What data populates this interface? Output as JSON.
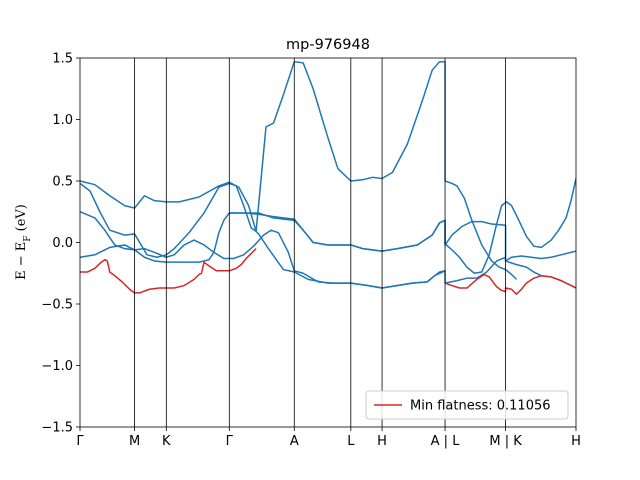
{
  "chart_data": {
    "type": "line",
    "title": "mp-976948",
    "ylabel": "E − E_F (eV)",
    "ylim": [
      -1.5,
      1.5
    ],
    "yticks": [
      -1.5,
      -1.0,
      -0.5,
      0.0,
      0.5,
      1.0,
      1.5
    ],
    "ytick_labels": [
      "−1.5",
      "−1.0",
      "−0.5",
      "0.0",
      "0.5",
      "1.0",
      "1.5"
    ],
    "xlim": [
      0,
      100
    ],
    "xticks": [
      {
        "label": "Γ",
        "x": 0
      },
      {
        "label": "M",
        "x": 11
      },
      {
        "label": "K",
        "x": 17.4
      },
      {
        "label": "Γ",
        "x": 30.1
      },
      {
        "label": "A",
        "x": 43.2
      },
      {
        "label": "L",
        "x": 54.6
      },
      {
        "label": "H",
        "x": 60.9
      },
      {
        "label": "A | L",
        "x": 73.6
      },
      {
        "label": "M | K",
        "x": 85.8
      },
      {
        "label": "H",
        "x": 100
      }
    ],
    "legend": {
      "label": "Min flatness: 0.11056",
      "placement": "lower-right"
    },
    "colors": {
      "bands": "#1f77b4",
      "highlight": "#d62728"
    },
    "series": [
      {
        "color": "#1f77b4",
        "points": [
          [
            0,
            0.5
          ],
          [
            3,
            0.47
          ],
          [
            6,
            0.38
          ],
          [
            9,
            0.3
          ],
          [
            11,
            0.28
          ],
          [
            13,
            0.38
          ],
          [
            15,
            0.34
          ],
          [
            17.4,
            0.33
          ],
          [
            20,
            0.33
          ],
          [
            24,
            0.37
          ],
          [
            28,
            0.46
          ],
          [
            30.1,
            0.49
          ],
          [
            32,
            0.45
          ],
          [
            34,
            0.3
          ],
          [
            35.5,
            0.09
          ],
          [
            37.5,
            0.94
          ],
          [
            39,
            0.97
          ],
          [
            41,
            1.2
          ],
          [
            43.2,
            1.47
          ],
          [
            45,
            1.46
          ],
          [
            47,
            1.25
          ],
          [
            50,
            0.85
          ],
          [
            52,
            0.6
          ],
          [
            54.6,
            0.5
          ],
          [
            57,
            0.51
          ],
          [
            59,
            0.53
          ],
          [
            60.9,
            0.52
          ],
          [
            63,
            0.57
          ],
          [
            66,
            0.8
          ],
          [
            69,
            1.15
          ],
          [
            71,
            1.4
          ],
          [
            72.5,
            1.47
          ],
          [
            73.6,
            1.47
          ],
          [
            73.6,
            0.5
          ],
          [
            75,
            0.48
          ],
          [
            76,
            0.46
          ],
          [
            77.5,
            0.36
          ],
          [
            79,
            0.18
          ],
          [
            81,
            -0.02
          ],
          [
            83,
            -0.15
          ],
          [
            84.5,
            -0.2
          ],
          [
            85.8,
            -0.22
          ],
          [
            87,
            -0.26
          ],
          [
            88,
            -0.3
          ]
        ]
      },
      {
        "color": "#1f77b4",
        "points": [
          [
            0,
            0.48
          ],
          [
            2,
            0.42
          ],
          [
            4,
            0.25
          ],
          [
            6,
            0.1
          ],
          [
            9,
            0.06
          ],
          [
            11,
            0.07
          ],
          [
            13.5,
            -0.1
          ],
          [
            15.5,
            -0.12
          ],
          [
            17.4,
            -0.1
          ],
          [
            19,
            -0.05
          ],
          [
            22,
            0.08
          ],
          [
            25,
            0.24
          ],
          [
            28,
            0.45
          ],
          [
            30.1,
            0.48
          ],
          [
            31.5,
            0.46
          ],
          [
            33,
            0.3
          ],
          [
            34.5,
            0.12
          ],
          [
            35.5,
            0.09
          ],
          [
            36,
            0.07
          ],
          [
            38,
            -0.05
          ],
          [
            41,
            -0.22
          ],
          [
            43.2,
            -0.24
          ],
          [
            46,
            -0.3
          ],
          [
            50,
            -0.33
          ],
          [
            54.6,
            -0.33
          ],
          [
            58,
            -0.35
          ],
          [
            60.9,
            -0.37
          ],
          [
            64,
            -0.35
          ],
          [
            67,
            -0.33
          ],
          [
            70,
            -0.32
          ],
          [
            71.5,
            -0.27
          ],
          [
            72.5,
            -0.24
          ],
          [
            73.6,
            -0.23
          ],
          [
            73.6,
            -0.33
          ],
          [
            76,
            -0.31
          ],
          [
            78,
            -0.29
          ],
          [
            80,
            -0.29
          ],
          [
            82,
            -0.24
          ],
          [
            84,
            -0.15
          ],
          [
            85.8,
            -0.12
          ],
          [
            85.8,
            -0.15
          ],
          [
            88,
            -0.18
          ],
          [
            90,
            -0.2
          ],
          [
            91.5,
            -0.24
          ],
          [
            93,
            -0.27
          ],
          [
            95,
            -0.28
          ],
          [
            97,
            -0.31
          ],
          [
            100,
            -0.37
          ]
        ]
      },
      {
        "color": "#1f77b4",
        "points": [
          [
            0,
            0.25
          ],
          [
            3,
            0.2
          ],
          [
            5,
            0.1
          ],
          [
            7,
            -0.02
          ],
          [
            9,
            -0.05
          ],
          [
            11,
            -0.06
          ],
          [
            13,
            -0.05
          ],
          [
            15,
            -0.08
          ],
          [
            17.4,
            -0.12
          ],
          [
            19,
            -0.1
          ],
          [
            21,
            -0.02
          ],
          [
            23,
            0.02
          ],
          [
            25,
            -0.02
          ],
          [
            27,
            -0.08
          ],
          [
            29,
            -0.13
          ],
          [
            31,
            -0.13
          ],
          [
            33,
            -0.1
          ],
          [
            35,
            -0.03
          ],
          [
            37,
            0.06
          ],
          [
            38.5,
            0.1
          ],
          [
            40,
            0.08
          ],
          [
            42,
            -0.08
          ],
          [
            43.2,
            -0.23
          ],
          [
            45,
            -0.25
          ],
          [
            48,
            -0.32
          ],
          [
            51,
            -0.33
          ],
          [
            54.6,
            -0.33
          ],
          [
            58,
            -0.35
          ],
          [
            60.9,
            -0.37
          ],
          [
            64,
            -0.35
          ],
          [
            67,
            -0.33
          ],
          [
            70,
            -0.32
          ],
          [
            71.5,
            -0.27
          ],
          [
            73.6,
            -0.23
          ]
        ]
      },
      {
        "color": "#1f77b4",
        "points": [
          [
            0,
            -0.12
          ],
          [
            3,
            -0.1
          ],
          [
            6,
            -0.04
          ],
          [
            9,
            -0.02
          ],
          [
            11,
            -0.06
          ],
          [
            13,
            -0.12
          ],
          [
            15,
            -0.15
          ],
          [
            17.4,
            -0.16
          ],
          [
            21,
            -0.16
          ],
          [
            24,
            -0.16
          ],
          [
            26,
            -0.14
          ],
          [
            27,
            -0.08
          ],
          [
            28,
            0.08
          ],
          [
            29,
            0.18
          ],
          [
            30.1,
            0.24
          ],
          [
            33,
            0.24
          ],
          [
            36,
            0.23
          ],
          [
            39,
            0.21
          ],
          [
            41,
            0.2
          ],
          [
            43.2,
            0.19
          ],
          [
            45,
            0.1
          ],
          [
            47,
            0.0
          ],
          [
            50,
            -0.02
          ],
          [
            54.6,
            -0.02
          ],
          [
            57,
            -0.05
          ],
          [
            60.9,
            -0.07
          ],
          [
            64,
            -0.05
          ],
          [
            68,
            -0.02
          ],
          [
            71,
            0.06
          ],
          [
            72.5,
            0.16
          ],
          [
            73.6,
            0.18
          ],
          [
            73.6,
            -0.02
          ],
          [
            75,
            0.06
          ],
          [
            77,
            0.13
          ],
          [
            79,
            0.17
          ],
          [
            81,
            0.17
          ],
          [
            83,
            0.15
          ],
          [
            85.8,
            0.14
          ],
          [
            85.8,
            -0.15
          ],
          [
            87,
            -0.12
          ],
          [
            89,
            -0.11
          ],
          [
            91,
            -0.12
          ],
          [
            93,
            -0.13
          ],
          [
            95,
            -0.12
          ],
          [
            97,
            -0.1
          ],
          [
            100,
            -0.07
          ]
        ]
      },
      {
        "color": "#1f77b4",
        "points": [
          [
            30.1,
            0.24
          ],
          [
            33,
            0.24
          ],
          [
            36,
            0.24
          ],
          [
            39,
            0.2
          ],
          [
            41,
            0.19
          ],
          [
            43.2,
            0.18
          ],
          [
            45,
            0.1
          ],
          [
            47,
            0.0
          ],
          [
            50,
            -0.02
          ],
          [
            54.6,
            -0.02
          ],
          [
            57,
            -0.05
          ],
          [
            60.9,
            -0.07
          ],
          [
            64,
            -0.05
          ],
          [
            68,
            -0.02
          ],
          [
            71,
            0.06
          ],
          [
            72.5,
            0.16
          ],
          [
            73.6,
            0.18
          ],
          [
            73.6,
            -0.01
          ],
          [
            75,
            -0.06
          ],
          [
            76.5,
            -0.12
          ],
          [
            78,
            -0.2
          ],
          [
            79.5,
            -0.25
          ],
          [
            81,
            -0.24
          ],
          [
            82.5,
            -0.1
          ],
          [
            84,
            0.15
          ],
          [
            85,
            0.3
          ],
          [
            86,
            0.33
          ],
          [
            87,
            0.3
          ],
          [
            88,
            0.22
          ],
          [
            90,
            0.05
          ],
          [
            91.5,
            -0.03
          ],
          [
            93,
            -0.04
          ],
          [
            95,
            0.02
          ],
          [
            96.5,
            0.1
          ],
          [
            98,
            0.2
          ],
          [
            99,
            0.34
          ],
          [
            100,
            0.52
          ]
        ]
      },
      {
        "color": "#d62728",
        "points": [
          [
            0,
            -0.24
          ],
          [
            1.5,
            -0.24
          ],
          [
            3,
            -0.21
          ],
          [
            4,
            -0.17
          ],
          [
            5,
            -0.14
          ],
          [
            5.5,
            -0.15
          ],
          [
            6,
            -0.24
          ],
          [
            7,
            -0.27
          ],
          [
            8.5,
            -0.32
          ],
          [
            10,
            -0.38
          ],
          [
            11,
            -0.41
          ],
          [
            12,
            -0.41
          ],
          [
            14,
            -0.38
          ],
          [
            16,
            -0.37
          ],
          [
            17.4,
            -0.37
          ],
          [
            19,
            -0.37
          ],
          [
            21,
            -0.35
          ],
          [
            23,
            -0.3
          ],
          [
            24,
            -0.26
          ],
          [
            24.5,
            -0.25
          ],
          [
            25,
            -0.16
          ],
          [
            26,
            -0.19
          ],
          [
            27.5,
            -0.23
          ],
          [
            30.1,
            -0.23
          ],
          [
            31.5,
            -0.21
          ],
          [
            32.5,
            -0.18
          ],
          [
            33.5,
            -0.13
          ],
          [
            34.5,
            -0.09
          ],
          [
            35.5,
            -0.05
          ]
        ]
      },
      {
        "color": "#d62728",
        "points": [
          [
            73.6,
            -0.33
          ],
          [
            75,
            -0.35
          ],
          [
            76.5,
            -0.37
          ],
          [
            78,
            -0.37
          ],
          [
            80,
            -0.3
          ],
          [
            81.5,
            -0.26
          ],
          [
            82.5,
            -0.28
          ],
          [
            84,
            -0.36
          ],
          [
            85,
            -0.39
          ],
          [
            85.8,
            -0.4
          ],
          [
            85.8,
            -0.37
          ],
          [
            87,
            -0.38
          ],
          [
            88,
            -0.42
          ],
          [
            89,
            -0.38
          ],
          [
            90,
            -0.33
          ],
          [
            91.5,
            -0.29
          ],
          [
            93,
            -0.27
          ],
          [
            95,
            -0.28
          ],
          [
            97,
            -0.31
          ],
          [
            100,
            -0.37
          ]
        ]
      }
    ]
  }
}
